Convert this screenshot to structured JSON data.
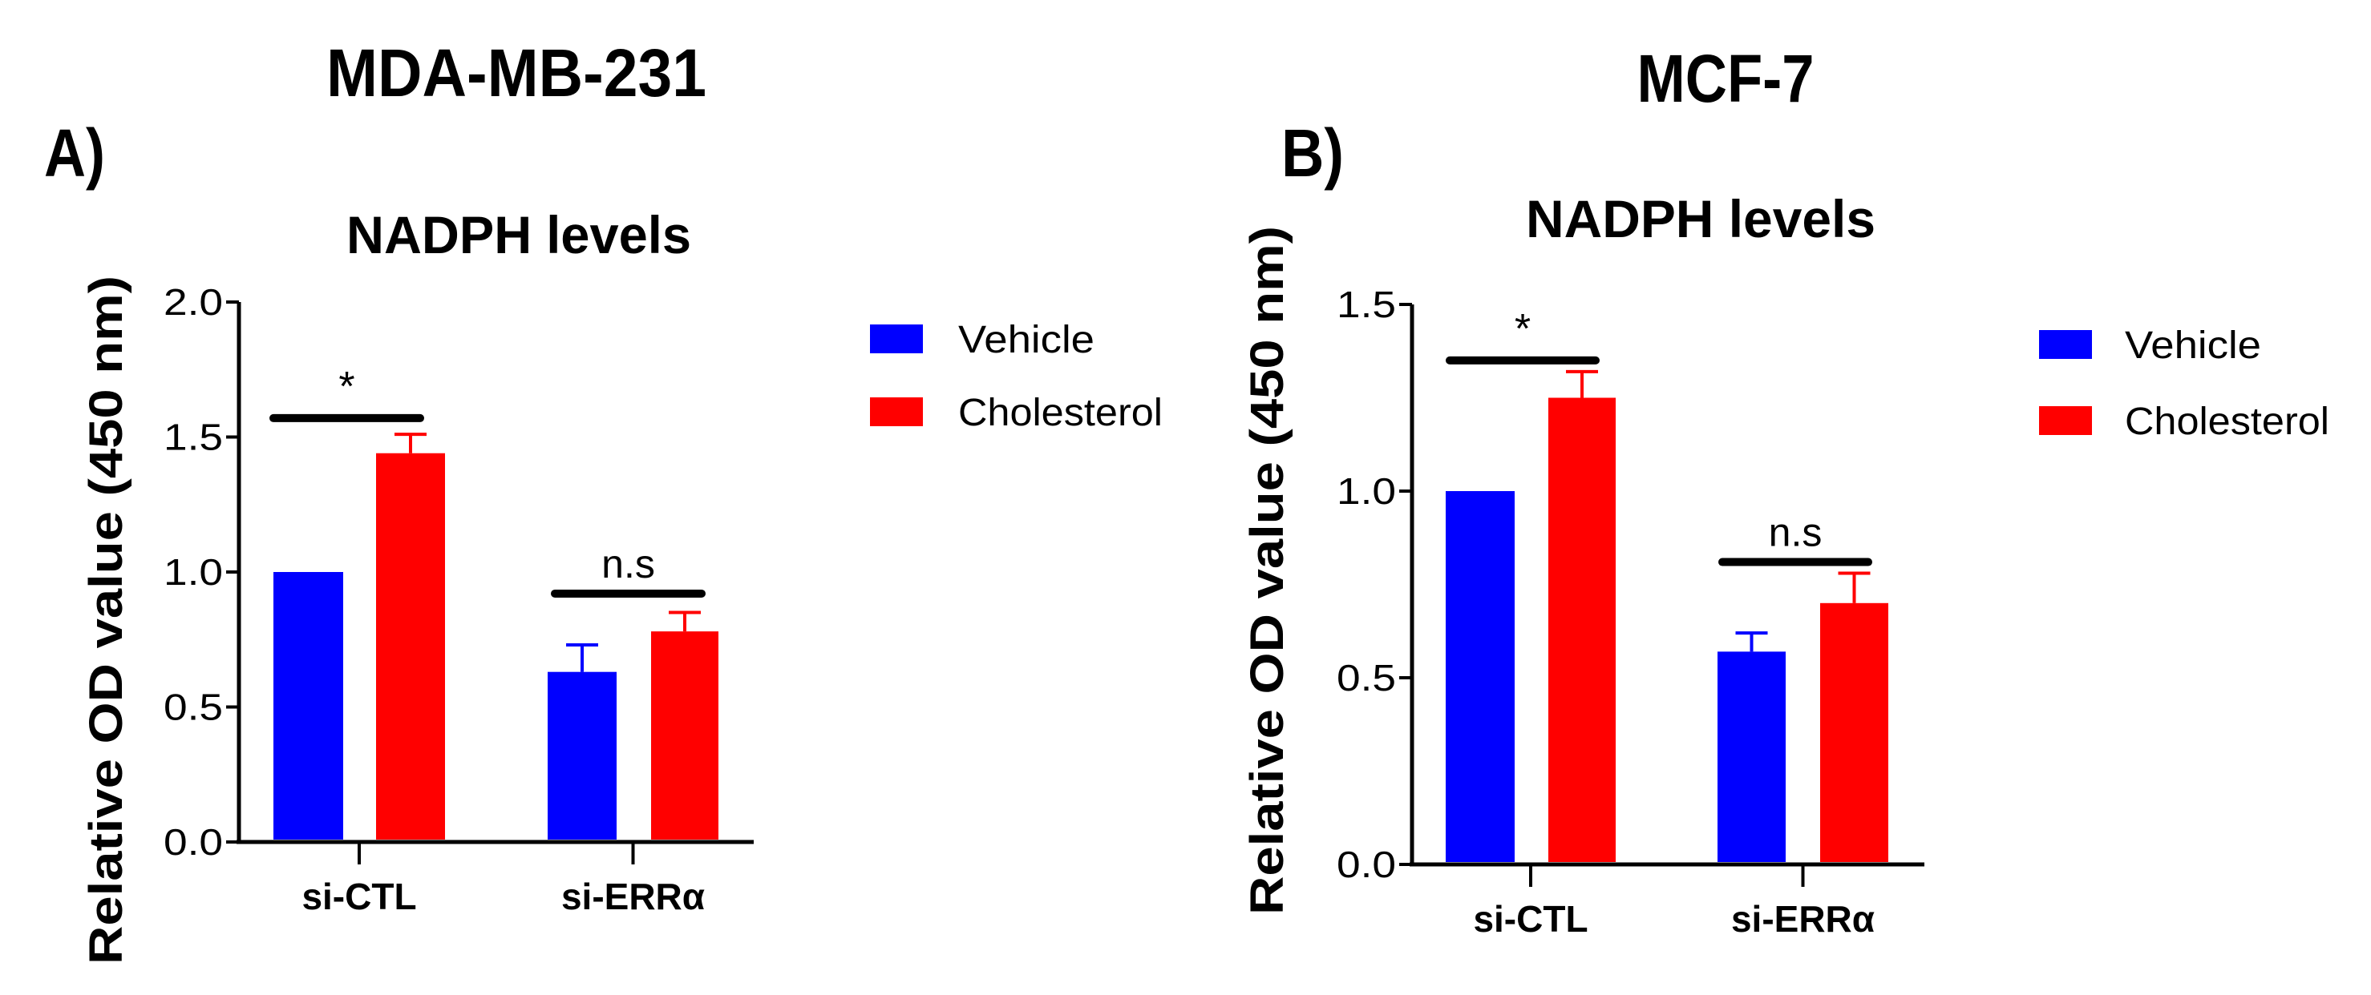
{
  "chart_data": [
    {
      "type": "bar",
      "panel_label": "A)",
      "cell_line": "MDA-MB-231",
      "title": "NADPH levels",
      "xlabel": "",
      "ylabel": "Relative OD value (450 nm)",
      "ylim": [
        0,
        2.0
      ],
      "yticks": [
        "0.0",
        "0.5",
        "1.0",
        "1.5",
        "2.0"
      ],
      "ytick_values": [
        0,
        0.5,
        1.0,
        1.5,
        2.0
      ],
      "categories": [
        "si-CTL",
        "si-ERRα"
      ],
      "legend_position": "right",
      "series": [
        {
          "name": "Vehicle",
          "color": "#0000ff",
          "values": [
            1.0,
            0.63
          ],
          "errors": [
            0,
            0.1
          ]
        },
        {
          "name": "Cholesterol",
          "color": "#ff0000",
          "values": [
            1.44,
            0.78
          ],
          "errors": [
            0.07,
            0.07
          ]
        }
      ],
      "annotations": [
        {
          "text": "*",
          "category": 0,
          "bar_y": 1.57
        },
        {
          "text": "n.s",
          "category": 1,
          "bar_y": 0.92
        }
      ]
    },
    {
      "type": "bar",
      "panel_label": "B)",
      "cell_line": "MCF-7",
      "title": "NADPH levels",
      "xlabel": "",
      "ylabel": "Relative OD value (450 nm)",
      "ylim": [
        0,
        1.5
      ],
      "yticks": [
        "0.0",
        "0.5",
        "1.0",
        "1.5"
      ],
      "ytick_values": [
        0,
        0.5,
        1.0,
        1.5
      ],
      "categories": [
        "si-CTL",
        "si-ERRα"
      ],
      "legend_position": "right",
      "series": [
        {
          "name": "Vehicle",
          "color": "#0000ff",
          "values": [
            1.0,
            0.57
          ],
          "errors": [
            0,
            0.05
          ]
        },
        {
          "name": "Cholesterol",
          "color": "#ff0000",
          "values": [
            1.25,
            0.7
          ],
          "errors": [
            0.07,
            0.08
          ]
        }
      ],
      "annotations": [
        {
          "text": "*",
          "category": 0,
          "bar_y": 1.35
        },
        {
          "text": "n.s",
          "category": 1,
          "bar_y": 0.81
        }
      ]
    }
  ]
}
